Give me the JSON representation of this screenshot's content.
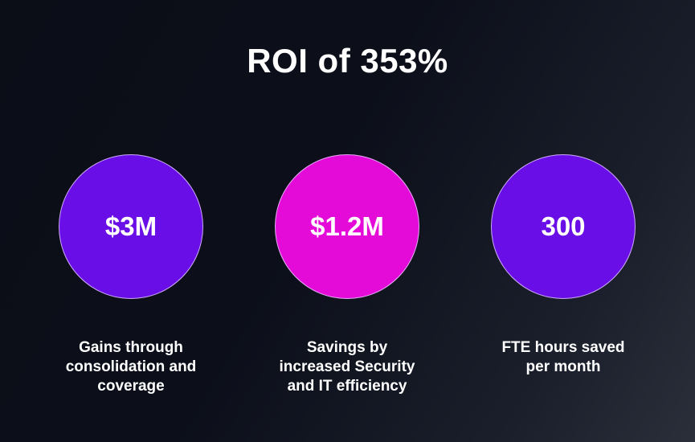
{
  "title": "ROI of 353%",
  "stats": [
    {
      "value": "$3M",
      "label_lines": [
        "Gains through",
        "consolidation and",
        "coverage"
      ],
      "color": "#6a0ee8"
    },
    {
      "value": "$1.2M",
      "label_lines": [
        "Savings by",
        "increased Security",
        "and IT efficiency"
      ],
      "color": "#e40ad8"
    },
    {
      "value": "300",
      "label_lines": [
        "FTE hours saved",
        "per month"
      ],
      "color": "#6a0ee8"
    }
  ]
}
